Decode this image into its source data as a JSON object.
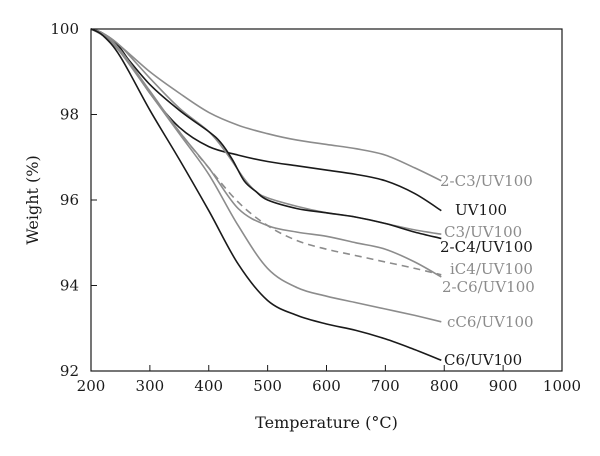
{
  "chart_data": {
    "type": "line",
    "xlabel": "Temperature (°C)",
    "ylabel": "Weight (%)",
    "xlim": [
      200,
      1000
    ],
    "ylim": [
      92,
      100
    ],
    "x_ticks": [
      "200",
      "300",
      "400",
      "500",
      "600",
      "700",
      "800",
      "900",
      "1000"
    ],
    "y_ticks": [
      "92",
      "94",
      "96",
      "98",
      "100"
    ],
    "grid": false,
    "legend": "labels at line ends",
    "series": [
      {
        "name": "2-C3/UV100",
        "color": "#8c8c8c",
        "dash": "solid",
        "x": [
          200,
          220,
          250,
          300,
          350,
          400,
          450,
          500,
          550,
          600,
          650,
          700,
          750,
          795
        ],
        "y": [
          100,
          99.9,
          99.6,
          99.0,
          98.5,
          98.05,
          97.75,
          97.55,
          97.4,
          97.3,
          97.2,
          97.05,
          96.75,
          96.45
        ]
      },
      {
        "name": "UV100",
        "color": "#1a1a1a",
        "dash": "solid",
        "x": [
          200,
          220,
          250,
          300,
          350,
          400,
          450,
          500,
          550,
          600,
          650,
          700,
          750,
          795
        ],
        "y": [
          100,
          99.9,
          99.55,
          98.5,
          97.7,
          97.25,
          97.05,
          96.9,
          96.8,
          96.7,
          96.6,
          96.45,
          96.15,
          95.75
        ]
      },
      {
        "name": "C3/UV100",
        "color": "#8c8c8c",
        "dash": "solid",
        "x": [
          200,
          220,
          250,
          300,
          350,
          400,
          430,
          460,
          480,
          500,
          550,
          600,
          650,
          700,
          750,
          795
        ],
        "y": [
          100,
          99.9,
          99.6,
          98.85,
          98.15,
          97.6,
          97.1,
          96.5,
          96.2,
          96.05,
          95.85,
          95.7,
          95.6,
          95.45,
          95.3,
          95.2
        ]
      },
      {
        "name": "2-C4/UV100",
        "color": "#1a1a1a",
        "dash": "solid",
        "x": [
          200,
          220,
          250,
          300,
          350,
          400,
          420,
          440,
          460,
          480,
          500,
          550,
          600,
          650,
          700,
          750,
          795
        ],
        "y": [
          100,
          99.85,
          99.5,
          98.7,
          98.1,
          97.6,
          97.35,
          96.95,
          96.45,
          96.2,
          96.0,
          95.8,
          95.7,
          95.6,
          95.45,
          95.25,
          95.1
        ]
      },
      {
        "name": "iC4/UV100",
        "color": "#8c8c8c",
        "dash": "dashed",
        "x": [
          200,
          220,
          250,
          300,
          350,
          400,
          450,
          500,
          550,
          600,
          650,
          700,
          750,
          795
        ],
        "y": [
          100,
          99.9,
          99.5,
          98.5,
          97.6,
          96.75,
          95.95,
          95.4,
          95.05,
          94.85,
          94.7,
          94.55,
          94.4,
          94.25
        ]
      },
      {
        "name": "2-C6/UV100",
        "color": "#8c8c8c",
        "dash": "solid",
        "x": [
          200,
          220,
          250,
          300,
          350,
          400,
          450,
          500,
          550,
          600,
          650,
          700,
          750,
          795
        ],
        "y": [
          100,
          99.9,
          99.5,
          98.55,
          97.6,
          96.75,
          95.8,
          95.4,
          95.25,
          95.15,
          95.0,
          94.85,
          94.55,
          94.2
        ]
      },
      {
        "name": "cC6/UV100",
        "color": "#8c8c8c",
        "dash": "solid",
        "x": [
          200,
          220,
          250,
          300,
          350,
          400,
          450,
          500,
          550,
          600,
          650,
          700,
          750,
          795
        ],
        "y": [
          100,
          99.85,
          99.45,
          98.5,
          97.55,
          96.6,
          95.4,
          94.4,
          93.95,
          93.75,
          93.6,
          93.45,
          93.3,
          93.15
        ]
      },
      {
        "name": "C6/UV100",
        "color": "#1a1a1a",
        "dash": "solid",
        "x": [
          200,
          220,
          250,
          300,
          350,
          400,
          450,
          500,
          550,
          600,
          650,
          700,
          750,
          795
        ],
        "y": [
          100,
          99.85,
          99.35,
          98.1,
          96.95,
          95.75,
          94.5,
          93.65,
          93.3,
          93.1,
          92.95,
          92.75,
          92.5,
          92.25
        ]
      }
    ]
  }
}
